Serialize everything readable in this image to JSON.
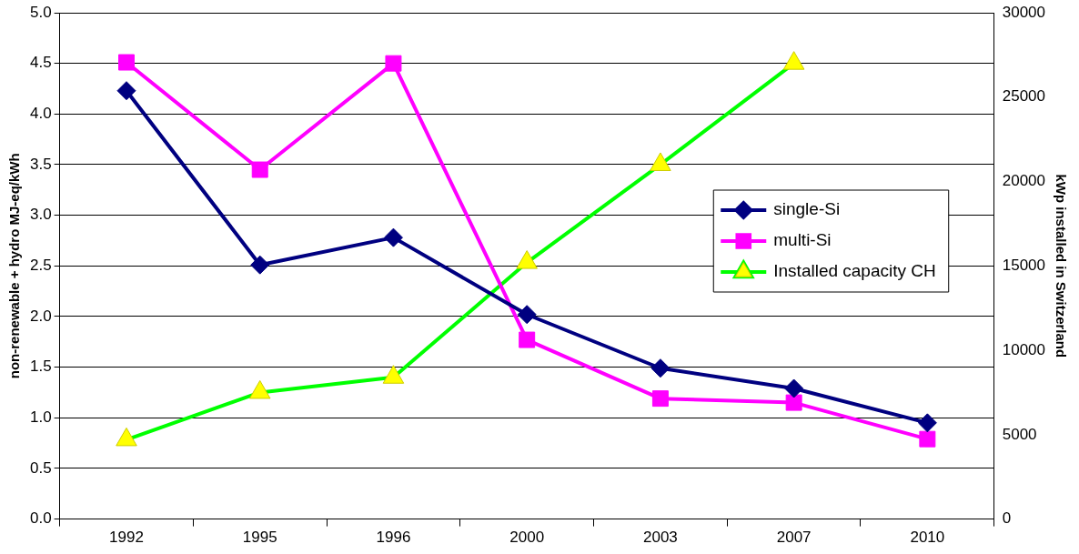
{
  "chart_data": {
    "type": "line",
    "ylabel": "non-renewable + hydro MJ-eq/kWh",
    "y2label": "kWp installed in Switzerland",
    "categories": [
      "1992",
      "1995",
      "1996",
      "2000",
      "2003",
      "2007",
      "2010"
    ],
    "series": [
      {
        "name": "single-Si",
        "color": "#000080",
        "marker": "diamond",
        "values": [
          4.23,
          2.51,
          2.78,
          2.02,
          1.49,
          1.29,
          0.95
        ]
      },
      {
        "name": "multi-Si",
        "color": "#ff00ff",
        "marker": "square",
        "values": [
          4.51,
          3.45,
          4.5,
          1.77,
          1.19,
          1.15,
          0.79
        ]
      },
      {
        "name": "Installed capacity CH",
        "color": "#00ff00",
        "marker": "triangle",
        "axis": "y2",
        "values": [
          4700,
          7500,
          8400,
          15200,
          21000,
          27000,
          null
        ]
      }
    ],
    "ylim": [
      0,
      5
    ],
    "yticks": [
      {
        "value": 0,
        "label": "0.0"
      },
      {
        "value": 0.5,
        "label": "0.5"
      },
      {
        "value": 1,
        "label": "1.0"
      },
      {
        "value": 1.5,
        "label": "1.5"
      },
      {
        "value": 2,
        "label": "2.0"
      },
      {
        "value": 2.5,
        "label": "2.5"
      },
      {
        "value": 3,
        "label": "3.0"
      },
      {
        "value": 3.5,
        "label": "3.5"
      },
      {
        "value": 4,
        "label": "4.0"
      },
      {
        "value": 4.5,
        "label": "4.5"
      },
      {
        "value": 5,
        "label": "5.0"
      }
    ],
    "y2lim": [
      0,
      30000
    ],
    "y2ticks": [
      0,
      5000,
      10000,
      15000,
      20000,
      25000,
      30000
    ],
    "grid": "y",
    "legend": "right"
  }
}
